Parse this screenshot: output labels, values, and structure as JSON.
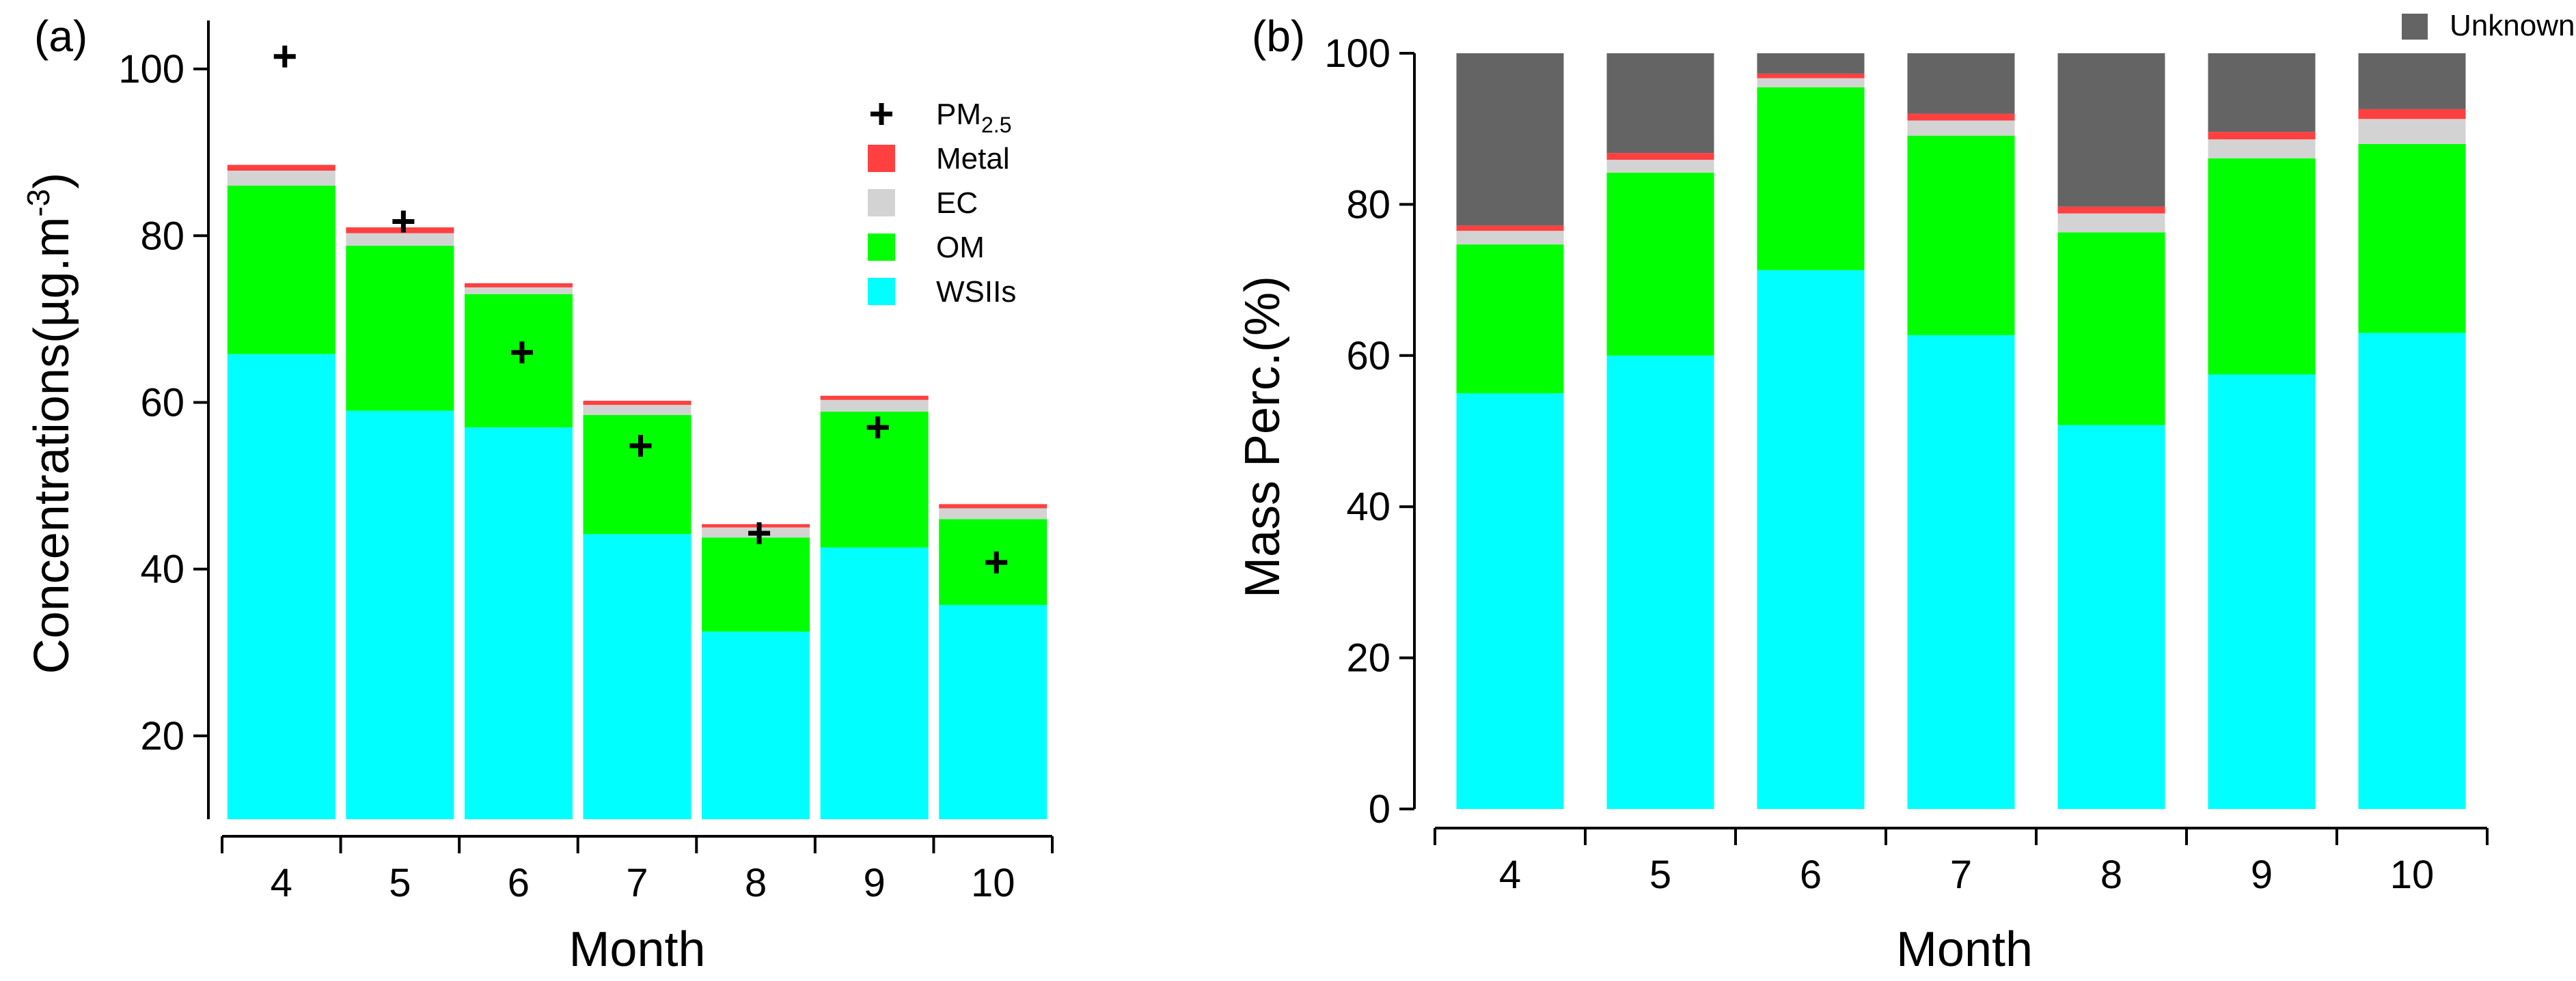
{
  "chart_data": [
    {
      "panel": "(a)",
      "type": "bar",
      "stacked": true,
      "xlabel": "Month",
      "ylabel_parts": [
        "Concentrations(µg.m",
        "-3",
        ")"
      ],
      "categories": [
        "4",
        "5",
        "6",
        "7",
        "8",
        "9",
        "10"
      ],
      "ylim": [
        10,
        105
      ],
      "yticks": [
        20,
        40,
        60,
        80,
        100
      ],
      "bar_base": 10,
      "series": [
        {
          "name": "WSIIs",
          "color": "#00ffff",
          "values": [
            55.8,
            49.0,
            47.0,
            34.2,
            22.5,
            32.6,
            25.7
          ]
        },
        {
          "name": "OM",
          "color": "#00ff00",
          "values": [
            20.2,
            19.8,
            16.0,
            14.3,
            11.3,
            16.3,
            10.3
          ]
        },
        {
          "name": "EC",
          "color": "#d3d3d3",
          "values": [
            1.8,
            1.5,
            0.8,
            1.2,
            1.2,
            1.4,
            1.3
          ]
        },
        {
          "name": "Metal",
          "color": "#ff4040",
          "values": [
            0.7,
            0.7,
            0.5,
            0.5,
            0.4,
            0.5,
            0.5
          ]
        }
      ],
      "pm25": {
        "label": "PM",
        "label_sub": "2.5",
        "values": [
          101.5,
          81.7,
          66.0,
          54.8,
          44.3,
          57.0,
          40.8
        ]
      },
      "legend_order": [
        "PM2.5",
        "Metal",
        "EC",
        "OM",
        "WSIIs"
      ],
      "legend_placement": "top-right"
    },
    {
      "panel": "(b)",
      "type": "bar",
      "stacked": true,
      "xlabel": "Month",
      "ylabel": "Mass Perc.(%)",
      "categories": [
        "4",
        "5",
        "6",
        "7",
        "8",
        "9",
        "10"
      ],
      "ylim": [
        0,
        100
      ],
      "yticks": [
        0,
        20,
        40,
        60,
        80,
        100
      ],
      "series": [
        {
          "name": "WSIIs",
          "color": "#00ffff",
          "values": [
            55.0,
            60.0,
            71.3,
            62.7,
            50.8,
            57.5,
            63.0
          ]
        },
        {
          "name": "OM",
          "color": "#00ff00",
          "values": [
            19.7,
            24.2,
            24.2,
            26.4,
            25.5,
            28.6,
            25.0
          ]
        },
        {
          "name": "EC",
          "color": "#d3d3d3",
          "values": [
            1.8,
            1.7,
            1.2,
            2.0,
            2.5,
            2.5,
            3.3
          ]
        },
        {
          "name": "Metal",
          "color": "#ff4040",
          "values": [
            0.7,
            0.9,
            0.6,
            0.9,
            0.9,
            1.0,
            1.3
          ]
        },
        {
          "name": "Unknown",
          "color": "#646464",
          "values": [
            22.8,
            13.2,
            2.7,
            8.0,
            20.3,
            10.4,
            7.4
          ]
        }
      ],
      "legend_order": [
        "Unknown"
      ],
      "legend_placement": "top-right"
    }
  ]
}
